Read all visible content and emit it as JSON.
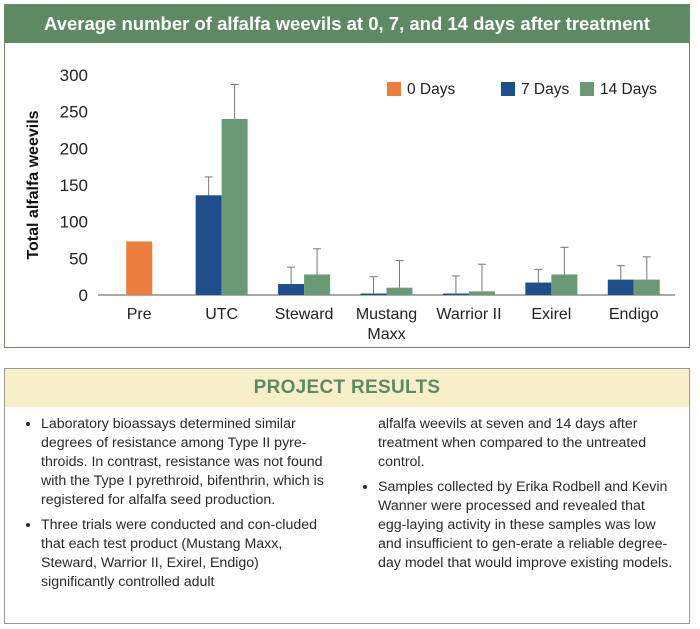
{
  "chart_data": {
    "type": "bar",
    "title": "Average number of alfalfa weevils at 0, 7, and 14 days after treatment",
    "ylabel": "Total alfalfa weevils",
    "ylim": [
      0,
      300
    ],
    "yticks": [
      0,
      50,
      100,
      150,
      200,
      250,
      300
    ],
    "categories": [
      [
        "Pre"
      ],
      [
        "UTC"
      ],
      [
        "Steward"
      ],
      [
        "Mustang",
        "Maxx"
      ],
      [
        "Warrior II"
      ],
      [
        "Exirel"
      ],
      [
        "Endigo"
      ]
    ],
    "legend_position": "top-right",
    "series": [
      {
        "name": "0 Days",
        "color": "#ec7d3c",
        "values": [
          73,
          null,
          null,
          null,
          null,
          null,
          null
        ],
        "error": [
          null,
          null,
          null,
          null,
          null,
          null,
          null
        ]
      },
      {
        "name": "7 Days",
        "color": "#1f4e8c",
        "values": [
          null,
          136,
          15,
          2,
          2,
          17,
          21
        ],
        "error": [
          null,
          25,
          23,
          23,
          24,
          18,
          19
        ]
      },
      {
        "name": "14 Days",
        "color": "#6a9a75",
        "values": [
          null,
          240,
          28,
          10,
          5,
          28,
          21
        ],
        "error": [
          null,
          47,
          35,
          37,
          37,
          37,
          31
        ]
      }
    ]
  },
  "results": {
    "header": "PROJECT RESULTS",
    "bullet1": "Laboratory bioassays determined similar degrees of resistance among Type II pyre-throids. In contrast, resistance was not found with the Type I pyrethroid, bifenthrin, which is registered for alfalfa seed production.",
    "bullet2": "Three trials were conducted and con-cluded that each test product (Mustang Maxx, Steward, Warrior II, Exirel, Endigo) significantly controlled adult",
    "bullet2_cont": "alfalfa weevils at seven and 14 days after treatment when compared to the untreated control.",
    "bullet3": "Samples collected by Erika Rodbell and Kevin Wanner were processed and revealed that egg-laying activity in these samples was low and insufficient to gen-erate a reliable degree-day model that would improve existing models."
  }
}
